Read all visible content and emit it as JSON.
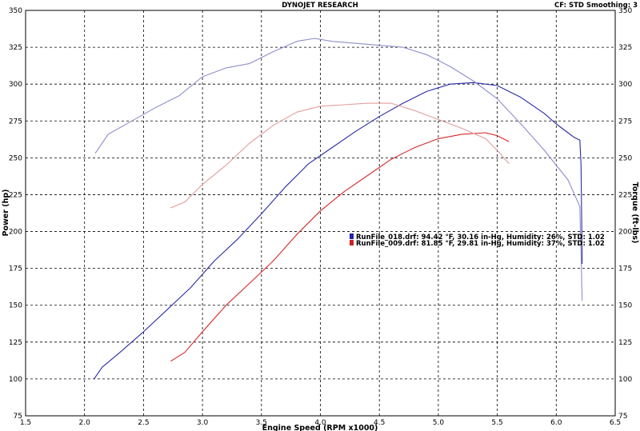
{
  "header": {
    "title": "DYNOJET RESEARCH",
    "settings": "CF: STD   Smoothing: 3"
  },
  "chart_data": {
    "type": "line",
    "title": "DYNOJET RESEARCH",
    "xlabel": "Engine Speed (RPM x1000)",
    "ylabel_left": "Power (hp)",
    "ylabel_right": "Torque (ft-lbs)",
    "xlim": [
      1.5,
      6.5
    ],
    "ylim": [
      75,
      350
    ],
    "x_ticks": [
      "1.5",
      "2.0",
      "2.5",
      "3.0",
      "3.5",
      "4.0",
      "4.5",
      "5.0",
      "5.5",
      "6.0",
      "6.5"
    ],
    "y_ticks": [
      "75",
      "100",
      "125",
      "150",
      "175",
      "200",
      "225",
      "250",
      "275",
      "300",
      "325",
      "350"
    ],
    "grid": true,
    "legend": [
      {
        "label": "RunFile_018.drf: 94.42 °F, 30.16 in-Hg, Humidity: 26%, STD: 1.02",
        "color": "#2222aa"
      },
      {
        "label": "RunFile_009.drf: 81.85 °F, 29.81 in-Hg, Humidity: 37%, STD: 1.02",
        "color": "#cc2222"
      }
    ],
    "series": [
      {
        "run": "RunFile_018.drf",
        "measure": "Power (hp)",
        "color": "#2a2aa8",
        "points": [
          [
            2.08,
            100
          ],
          [
            2.15,
            108
          ],
          [
            2.3,
            118
          ],
          [
            2.5,
            132
          ],
          [
            2.7,
            147
          ],
          [
            2.9,
            162
          ],
          [
            3.1,
            180
          ],
          [
            3.3,
            195
          ],
          [
            3.5,
            212
          ],
          [
            3.7,
            230
          ],
          [
            3.9,
            246
          ],
          [
            4.1,
            257
          ],
          [
            4.3,
            268
          ],
          [
            4.5,
            278
          ],
          [
            4.7,
            287
          ],
          [
            4.9,
            295
          ],
          [
            5.1,
            300
          ],
          [
            5.3,
            301
          ],
          [
            5.5,
            299
          ],
          [
            5.7,
            291
          ],
          [
            5.9,
            280
          ],
          [
            6.0,
            273
          ],
          [
            6.1,
            267
          ],
          [
            6.15,
            264
          ],
          [
            6.2,
            262
          ],
          [
            6.21,
            245
          ],
          [
            6.22,
            178
          ]
        ]
      },
      {
        "run": "RunFile_018.drf",
        "measure": "Torque (ft-lbs)",
        "color": "#8e8ecc",
        "points": [
          [
            2.09,
            253
          ],
          [
            2.2,
            266
          ],
          [
            2.4,
            275
          ],
          [
            2.6,
            284
          ],
          [
            2.8,
            292
          ],
          [
            3.0,
            305
          ],
          [
            3.2,
            311
          ],
          [
            3.4,
            314
          ],
          [
            3.6,
            322
          ],
          [
            3.8,
            329
          ],
          [
            3.95,
            331
          ],
          [
            4.1,
            329
          ],
          [
            4.4,
            327
          ],
          [
            4.7,
            325
          ],
          [
            4.9,
            320
          ],
          [
            5.1,
            312
          ],
          [
            5.3,
            302
          ],
          [
            5.5,
            290
          ],
          [
            5.7,
            273
          ],
          [
            5.9,
            255
          ],
          [
            6.0,
            245
          ],
          [
            6.1,
            235
          ],
          [
            6.2,
            217
          ],
          [
            6.22,
            153
          ]
        ]
      },
      {
        "run": "RunFile_009.drf",
        "measure": "Power (hp)",
        "color": "#d42a2a",
        "points": [
          [
            2.73,
            112
          ],
          [
            2.85,
            118
          ],
          [
            3.0,
            132
          ],
          [
            3.2,
            150
          ],
          [
            3.4,
            165
          ],
          [
            3.6,
            180
          ],
          [
            3.8,
            198
          ],
          [
            4.0,
            214
          ],
          [
            4.2,
            227
          ],
          [
            4.4,
            238
          ],
          [
            4.6,
            249
          ],
          [
            4.8,
            257
          ],
          [
            5.0,
            263
          ],
          [
            5.2,
            266
          ],
          [
            5.4,
            267
          ],
          [
            5.5,
            265
          ],
          [
            5.6,
            261
          ]
        ]
      },
      {
        "run": "RunFile_009.drf",
        "measure": "Torque (ft-lbs)",
        "color": "#e49c9c",
        "points": [
          [
            2.73,
            216
          ],
          [
            2.85,
            220
          ],
          [
            3.0,
            232
          ],
          [
            3.2,
            245
          ],
          [
            3.4,
            260
          ],
          [
            3.6,
            272
          ],
          [
            3.8,
            281
          ],
          [
            4.0,
            285
          ],
          [
            4.2,
            286
          ],
          [
            4.4,
            287
          ],
          [
            4.6,
            287
          ],
          [
            4.8,
            282
          ],
          [
            5.0,
            276
          ],
          [
            5.2,
            270
          ],
          [
            5.4,
            263
          ],
          [
            5.5,
            255
          ],
          [
            5.6,
            246
          ]
        ]
      }
    ]
  }
}
